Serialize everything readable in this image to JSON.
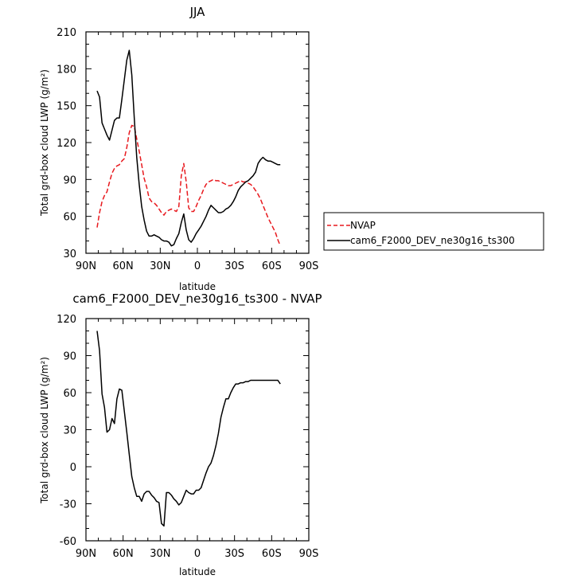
{
  "chart_data": [
    {
      "type": "line",
      "title": "JJA",
      "xlabel": "latitude",
      "ylabel": "Total grd-box cloud LWP (g/m²)",
      "xticks": [
        {
          "value": 90,
          "label": "90N"
        },
        {
          "value": 60,
          "label": "60N"
        },
        {
          "value": 30,
          "label": "30N"
        },
        {
          "value": 0,
          "label": "0"
        },
        {
          "value": -30,
          "label": "30S"
        },
        {
          "value": -60,
          "label": "60S"
        },
        {
          "value": -90,
          "label": "90S"
        }
      ],
      "yticks": [
        30,
        60,
        90,
        120,
        150,
        180,
        210
      ],
      "xlim": [
        90,
        -90
      ],
      "ylim": [
        30,
        210
      ],
      "legend": {
        "placement": "right-outside"
      },
      "series": [
        {
          "name": "NVAP",
          "color": "#e8191e",
          "dash": "dashed",
          "x": [
            81,
            79,
            77,
            75,
            73,
            71,
            69,
            67,
            65,
            63,
            61,
            59,
            57,
            55,
            53,
            51,
            49,
            47,
            45,
            43,
            41,
            39,
            37,
            35,
            33,
            31,
            29,
            27,
            25,
            23,
            21,
            19,
            17,
            15,
            13,
            11,
            9,
            7,
            5,
            3,
            1,
            -1,
            -3,
            -5,
            -7,
            -9,
            -11,
            -13,
            -15,
            -17,
            -19,
            -21,
            -23,
            -25,
            -27,
            -29,
            -31,
            -33,
            -35,
            -37,
            -39,
            -41,
            -43,
            -45,
            -47,
            -49,
            -51,
            -53,
            -55,
            -57,
            -59,
            -61,
            -63,
            -65,
            -67
          ],
          "values": [
            51,
            63,
            72,
            77,
            80,
            88,
            95,
            99,
            101,
            102,
            105,
            107,
            116,
            128,
            134,
            133,
            123,
            113,
            102,
            91,
            84,
            75,
            72,
            71,
            69,
            66,
            63,
            61,
            64,
            65,
            66,
            65,
            64,
            68,
            93,
            103,
            88,
            67,
            64,
            64,
            68,
            73,
            77,
            82,
            86,
            88,
            89,
            90,
            89,
            89,
            88,
            87,
            86,
            85,
            85,
            86,
            87,
            88,
            89,
            88,
            88,
            87,
            86,
            84,
            81,
            78,
            74,
            69,
            64,
            59,
            55,
            51,
            47,
            41,
            36
          ]
        },
        {
          "name": "cam6_F2000_DEV_ne30g16_ts300",
          "color": "#000000",
          "dash": "solid",
          "x": [
            81,
            79,
            77,
            75,
            73,
            71,
            69,
            67,
            65,
            63,
            61,
            59,
            57,
            55,
            53,
            51,
            49,
            47,
            45,
            43,
            41,
            39,
            37,
            35,
            33,
            31,
            29,
            27,
            25,
            23,
            21,
            19,
            17,
            15,
            13,
            11,
            9,
            7,
            5,
            3,
            1,
            -1,
            -3,
            -5,
            -7,
            -9,
            -11,
            -13,
            -15,
            -17,
            -19,
            -21,
            -23,
            -25,
            -27,
            -29,
            -31,
            -33,
            -35,
            -37,
            -39,
            -41,
            -43,
            -45,
            -47,
            -49,
            -51,
            -53,
            -55,
            -57,
            -59,
            -61,
            -63,
            -65,
            -67
          ],
          "values": [
            162,
            157,
            136,
            131,
            126,
            122,
            130,
            138,
            140,
            140,
            155,
            171,
            187,
            195,
            175,
            140,
            108,
            86,
            68,
            57,
            48,
            44,
            44,
            45,
            44,
            43,
            41,
            40,
            40,
            39,
            36,
            37,
            42,
            46,
            55,
            62,
            49,
            41,
            39,
            42,
            46,
            49,
            52,
            56,
            60,
            65,
            69,
            67,
            65,
            63,
            63,
            64,
            66,
            67,
            69,
            72,
            76,
            81,
            84,
            86,
            88,
            89,
            91,
            93,
            96,
            103,
            106,
            108,
            106,
            105,
            105,
            104,
            103,
            102,
            102
          ]
        }
      ]
    },
    {
      "type": "line",
      "title": "cam6_F2000_DEV_ne30g16_ts300 - NVAP",
      "xlabel": "latitude",
      "ylabel": "Total grd-box cloud LWP (g/m²)",
      "xticks": [
        {
          "value": 90,
          "label": "90N"
        },
        {
          "value": 60,
          "label": "60N"
        },
        {
          "value": 30,
          "label": "30N"
        },
        {
          "value": 0,
          "label": "0"
        },
        {
          "value": -30,
          "label": "30S"
        },
        {
          "value": -60,
          "label": "60S"
        },
        {
          "value": -90,
          "label": "90S"
        }
      ],
      "yticks": [
        -60,
        -30,
        0,
        30,
        60,
        90,
        120
      ],
      "xlim": [
        90,
        -90
      ],
      "ylim": [
        -60,
        120
      ],
      "series": [
        {
          "color": "#000000",
          "dash": "solid",
          "x": [
            81,
            79,
            77,
            75,
            73,
            71,
            69,
            67,
            65,
            63,
            61,
            59,
            57,
            55,
            53,
            51,
            49,
            47,
            45,
            43,
            41,
            39,
            37,
            35,
            33,
            31,
            29,
            27,
            25,
            23,
            21,
            19,
            17,
            15,
            13,
            11,
            9,
            7,
            5,
            3,
            1,
            -1,
            -3,
            -5,
            -7,
            -9,
            -11,
            -13,
            -15,
            -17,
            -19,
            -21,
            -23,
            -25,
            -27,
            -29,
            -31,
            -33,
            -35,
            -37,
            -39,
            -41,
            -43,
            -45,
            -47,
            -49,
            -51,
            -53,
            -55,
            -57,
            -59,
            -61,
            -63,
            -65,
            -67
          ],
          "values": [
            110,
            94,
            59,
            48,
            28,
            30,
            39,
            35,
            55,
            63,
            62,
            45,
            28,
            10,
            -8,
            -17,
            -24,
            -24,
            -28,
            -22,
            -20,
            -20,
            -23,
            -25,
            -28,
            -29,
            -46,
            -48,
            -21,
            -21,
            -23,
            -26,
            -28,
            -31,
            -29,
            -24,
            -19,
            -21,
            -22,
            -22,
            -19,
            -19,
            -17,
            -11,
            -5,
            0,
            3,
            9,
            17,
            27,
            40,
            48,
            55,
            55,
            60,
            64,
            67,
            67,
            68,
            68,
            69,
            69,
            70,
            70,
            70,
            70,
            70,
            70,
            70,
            70,
            70,
            70,
            70,
            70,
            67
          ]
        }
      ]
    }
  ]
}
